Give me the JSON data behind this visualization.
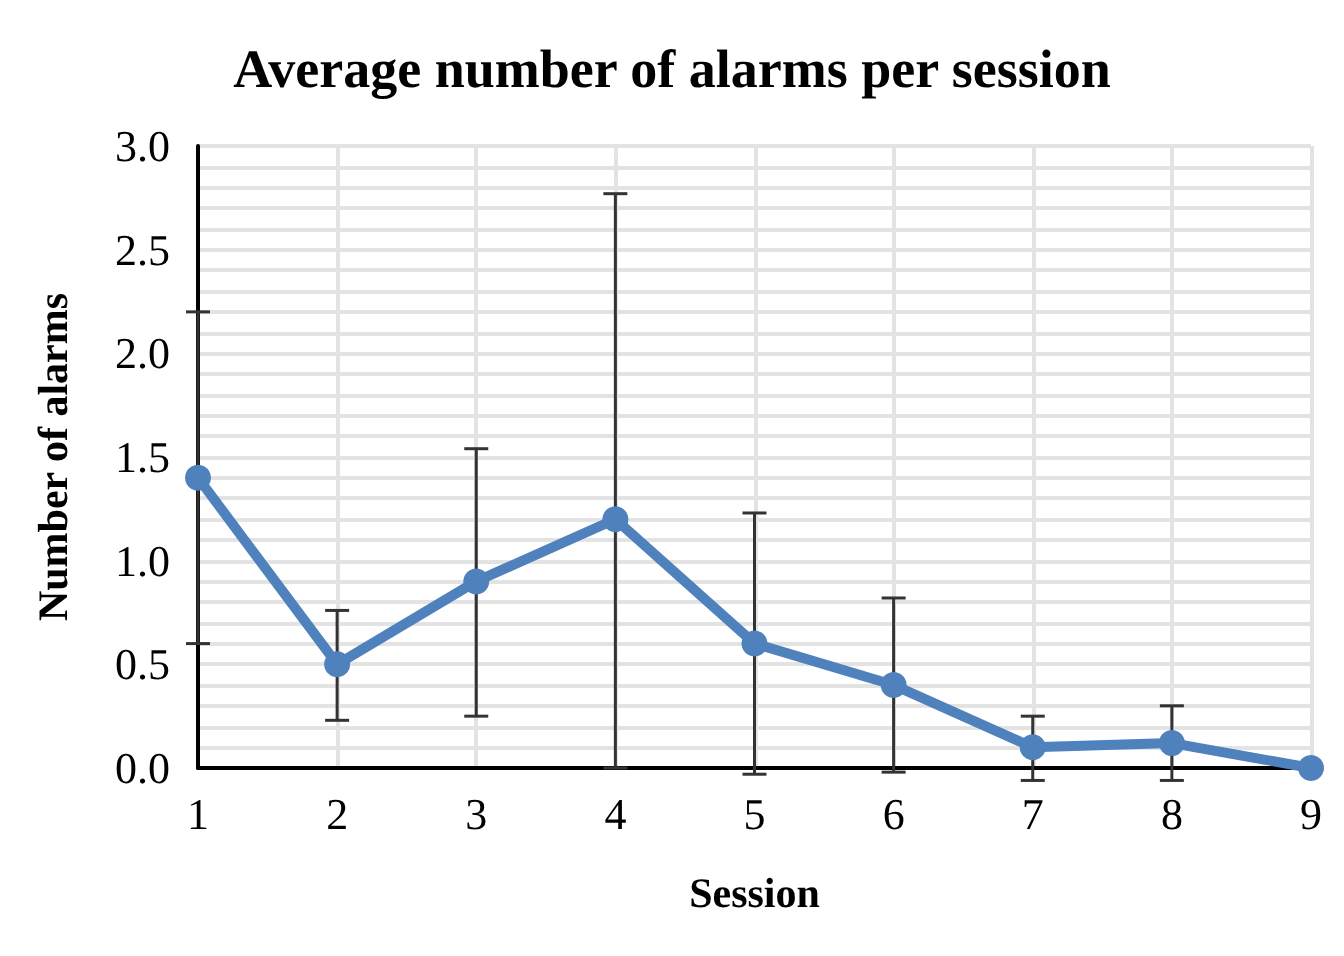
{
  "chart_data": {
    "type": "line",
    "title": "Average number of alarms per session",
    "xlabel": "Session",
    "ylabel": "Number of alarms",
    "categories": [
      "1",
      "2",
      "3",
      "4",
      "5",
      "6",
      "7",
      "8",
      "9"
    ],
    "series": [
      {
        "color": "#4f81bd",
        "values": [
          1.4,
          0.5,
          0.9,
          1.2,
          0.6,
          0.4,
          0.1,
          0.12,
          0.0
        ],
        "errors": [
          0.8,
          [
            0.23,
            0.76
          ],
          [
            0.25,
            1.54
          ],
          [
            0,
            2.77
          ],
          [
            -0.03,
            1.23
          ],
          [
            -0.02,
            0.82
          ],
          [
            -0.06,
            0.25
          ],
          [
            -0.06,
            0.3
          ],
          null
        ]
      }
    ],
    "ylim": [
      0,
      3
    ],
    "yticks": [
      {
        "value": 0,
        "label": "0.0"
      },
      {
        "value": 0.5,
        "label": "0.5"
      },
      {
        "value": 1,
        "label": "1.0"
      },
      {
        "value": 1.5,
        "label": "1.5"
      },
      {
        "value": 2,
        "label": "2.0"
      },
      {
        "value": 2.5,
        "label": "2.5"
      },
      {
        "value": 3,
        "label": "3.0"
      }
    ],
    "grid": true,
    "marker": "circle",
    "line_style": "solid"
  }
}
